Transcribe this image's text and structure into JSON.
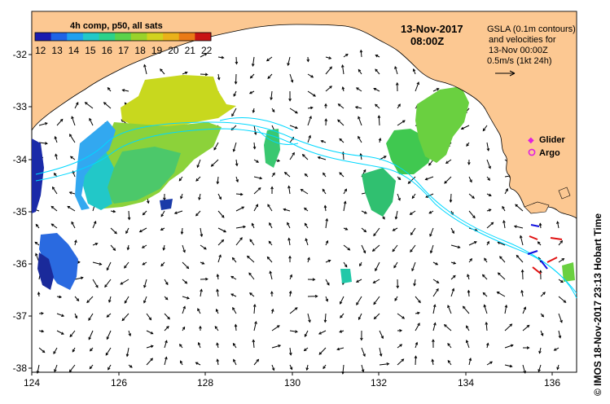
{
  "header": {
    "date": "13-Nov-2017",
    "time": "08:00Z"
  },
  "colorbar": {
    "title": "4h comp, p50, all sats",
    "ticks": [
      "12",
      "13",
      "14",
      "15",
      "16",
      "17",
      "18",
      "19",
      "20",
      "21",
      "22"
    ],
    "colors": [
      "#1a1ab0",
      "#1f63e6",
      "#1fa0f0",
      "#22c8c8",
      "#2cd28a",
      "#5ad24a",
      "#9ad22a",
      "#d2d21e",
      "#eab21a",
      "#ea7a16",
      "#c81414"
    ]
  },
  "gsla_note": {
    "line1": "GSLA (0.1m contours)",
    "line2": "and velocities for",
    "line3": "13-Nov 00:00Z",
    "line4": "0.5m/s (1kt 24h)"
  },
  "legend": {
    "glider_label": "Glider",
    "argo_label": "Argo",
    "glider_color": "#e020e0",
    "argo_color": "#e020e0"
  },
  "axes": {
    "x_ticks": [
      "124",
      "126",
      "128",
      "130",
      "132",
      "134",
      "136"
    ],
    "y_ticks": [
      "-32",
      "-33",
      "-34",
      "-35",
      "-36",
      "-37",
      "-38"
    ]
  },
  "colors": {
    "land": "#fcc892",
    "ocean": "#ffffff",
    "contour": "#00d8ff",
    "arrows": "#000000"
  },
  "credit": "© IMOS 18-Nov-2017 23:13 Hobart Time"
}
